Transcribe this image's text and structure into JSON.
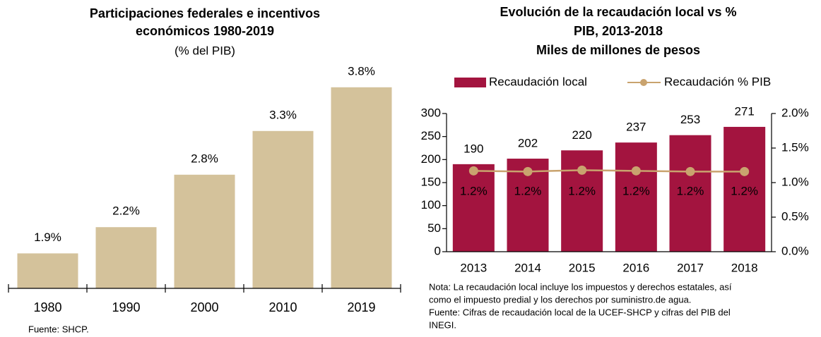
{
  "chart_data": [
    {
      "type": "bar",
      "title": [
        "Participaciones federales e incentivos",
        "económicos 1980-2019"
      ],
      "subtitle": "(% del PIB)",
      "categories": [
        "1980",
        "1990",
        "2000",
        "2010",
        "2019"
      ],
      "values": [
        1.9,
        2.2,
        2.8,
        3.3,
        3.8
      ],
      "value_labels": [
        "1.9%",
        "2.2%",
        "2.8%",
        "3.3%",
        "3.8%"
      ],
      "color": "#d4c29b",
      "ylim": [
        1.5,
        4.0
      ],
      "source": "Fuente: SHCP."
    },
    {
      "type": "bar_line",
      "title": [
        "Evolución de la recaudación local vs %",
        "PIB, 2013-2018",
        "Miles de millones de pesos"
      ],
      "categories": [
        "2013",
        "2014",
        "2015",
        "2016",
        "2017",
        "2018"
      ],
      "series": [
        {
          "name": "Recaudación local",
          "color": "#a3143f",
          "values": [
            190,
            202,
            220,
            237,
            253,
            271
          ]
        },
        {
          "name": "Recaudación % PIB",
          "color": "#c9a36e",
          "axis": "y2",
          "values": [
            1.17,
            1.16,
            1.18,
            1.17,
            1.16,
            1.16
          ],
          "value_labels": [
            "1.2%",
            "1.2%",
            "1.2%",
            "1.2%",
            "1.2%",
            "1.2%"
          ]
        }
      ],
      "ylim": [
        0,
        300
      ],
      "yticks": [
        0,
        50,
        100,
        150,
        200,
        250,
        300
      ],
      "y2lim": [
        0,
        2.0
      ],
      "y2ticks": [
        {
          "value": 0,
          "label": "0.0%"
        },
        {
          "value": 0.5,
          "label": "0.5%"
        },
        {
          "value": 1.0,
          "label": "1.0%"
        },
        {
          "value": 1.5,
          "label": "1.5%"
        },
        {
          "value": 2.0,
          "label": "2.0%"
        }
      ],
      "legend": "top",
      "notes": [
        "Nota: La recaudación local incluye los impuestos y derechos estatales, así",
        "como el impuesto predial y los derechos por suministro.de agua.",
        "Fuente: Cifras de recaudación local de la UCEF-SHCP y cifras del PIB del",
        "INEGI."
      ]
    }
  ]
}
